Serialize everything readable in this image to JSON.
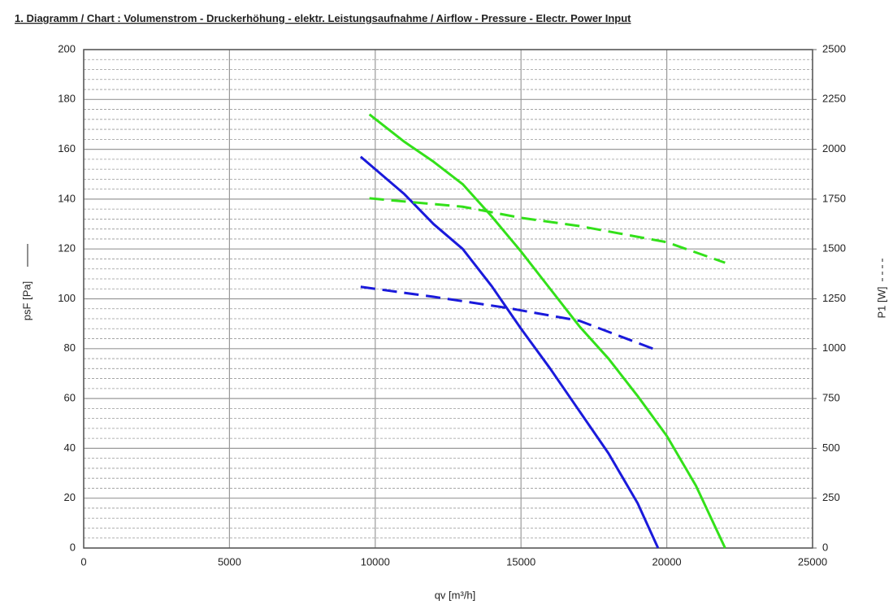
{
  "chart_data": {
    "type": "line",
    "title": "1. Diagramm / Chart :   Volumenstrom - Druckerhöhung - elektr. Leistungsaufnahme / Airflow - Pressure - Electr. Power Input",
    "x_label": "qv [m³/h]",
    "y_label": "psF [Pa]",
    "y2_label": "P1 [W]",
    "xlim": [
      0,
      25000
    ],
    "xticks": [
      0,
      5000,
      10000,
      15000,
      20000,
      25000
    ],
    "ylim": [
      0,
      200
    ],
    "yticks": [
      0,
      20,
      40,
      60,
      80,
      100,
      120,
      140,
      160,
      180,
      200
    ],
    "y2lim": [
      0,
      2500
    ],
    "y2ticks": [
      0,
      250,
      500,
      750,
      1000,
      1250,
      1500,
      1750,
      2000,
      2250,
      2500
    ],
    "grid": true,
    "minor_grid": true,
    "series": [
      {
        "color": "#1a1adb",
        "dashed": false,
        "x": [
          9500,
          11000,
          12000,
          13000,
          14000,
          15000,
          16000,
          17000,
          18000,
          19000,
          19700
        ],
        "values": [
          157,
          142,
          130,
          120,
          105,
          88,
          72,
          55,
          38,
          18,
          0
        ]
      },
      {
        "color": "#33e01a",
        "dashed": false,
        "x": [
          9800,
          11000,
          12000,
          13000,
          14000,
          15000,
          16000,
          17000,
          18000,
          19000,
          20000,
          21000,
          22000
        ],
        "values": [
          174,
          163,
          155,
          146,
          133,
          119,
          104,
          89,
          76,
          61,
          45,
          25,
          0
        ]
      },
      {
        "color": "#1a1adb",
        "dashed": true,
        "axis": "y2",
        "x": [
          9500,
          12000,
          14500,
          17000,
          19700
        ],
        "values": [
          1310,
          1260,
          1205,
          1140,
          990
        ]
      },
      {
        "color": "#33e01a",
        "dashed": true,
        "axis": "y2",
        "x": [
          9800,
          13000,
          15000,
          17000,
          20000,
          22000
        ],
        "values": [
          1754,
          1712,
          1656,
          1615,
          1534,
          1431
        ]
      }
    ]
  }
}
